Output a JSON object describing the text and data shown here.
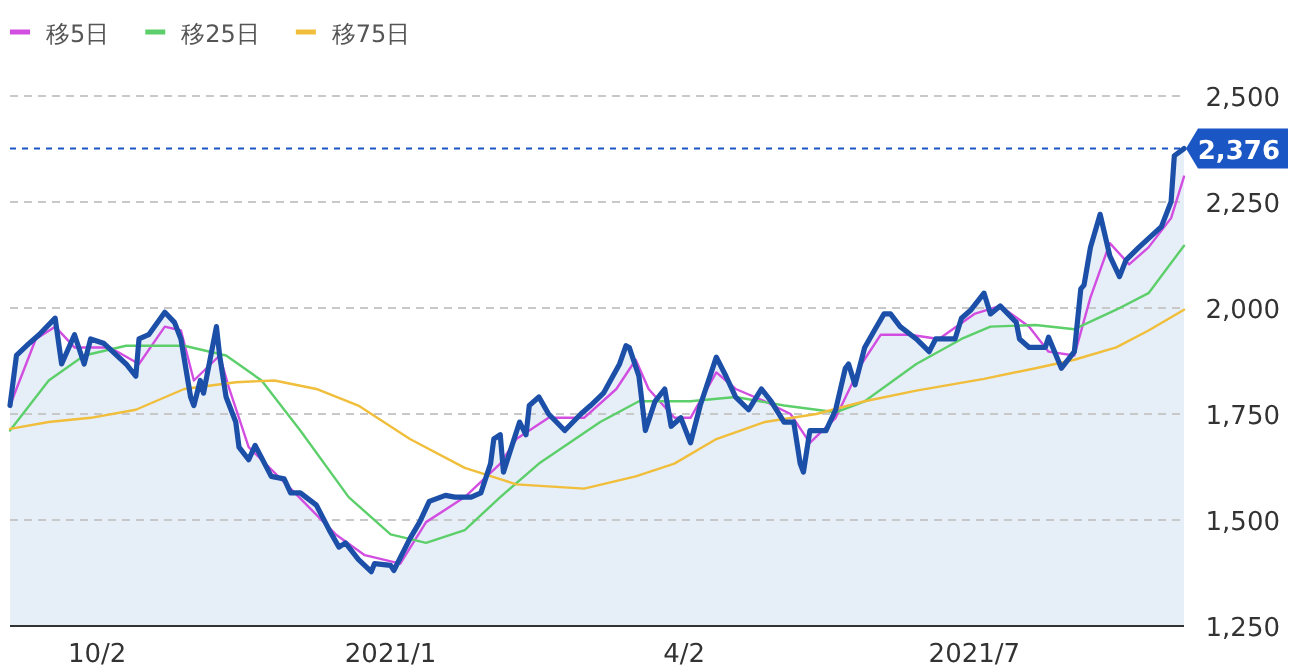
{
  "chart_data": {
    "type": "line",
    "legend": "top left",
    "grid": "y",
    "marker": "none",
    "xlim": [
      "2020-09-05",
      "2021-09-04"
    ],
    "ylim": [
      1250,
      2500
    ],
    "xticks": [
      {
        "value": "2020-10-02",
        "label": "10/2"
      },
      {
        "value": "2021-01-01",
        "label": "2021/1"
      },
      {
        "value": "2021-04-02",
        "label": "4/2"
      },
      {
        "value": "2021-07-01",
        "label": "2021/7"
      }
    ],
    "yticks": [
      {
        "value": 1250,
        "label": "1,250"
      },
      {
        "value": 1500,
        "label": "1,500"
      },
      {
        "value": 1750,
        "label": "1,750"
      },
      {
        "value": 2000,
        "label": "2,000"
      },
      {
        "value": 2250,
        "label": "2,250"
      },
      {
        "value": 2500,
        "label": "2,500"
      }
    ],
    "ref_lines": [
      {
        "axis": "y",
        "value": 2376,
        "label": "2,376",
        "color": "#1a56c4",
        "line_style": "dashed"
      }
    ],
    "series": [
      {
        "type": "area",
        "color": "#1b4fa8",
        "x": [
          "2020-09-05",
          "2020-09-07",
          "2020-09-11",
          "2020-09-14",
          "2020-09-19",
          "2020-09-21",
          "2020-09-25",
          "2020-09-28",
          "2020-09-30",
          "2020-10-04",
          "2020-10-11",
          "2020-10-14",
          "2020-10-15",
          "2020-10-18",
          "2020-10-23",
          "2020-10-26",
          "2020-10-28",
          "2020-10-31",
          "2020-11-01",
          "2020-11-03",
          "2020-11-04",
          "2020-11-08",
          "2020-11-09",
          "2020-11-11",
          "2020-11-14",
          "2020-11-15",
          "2020-11-18",
          "2020-11-20",
          "2020-11-25",
          "2020-11-29",
          "2020-12-01",
          "2020-12-04",
          "2020-12-09",
          "2020-12-13",
          "2020-12-16",
          "2020-12-18",
          "2020-12-22",
          "2020-12-26",
          "2020-12-27",
          "2021-01-01",
          "2021-01-02",
          "2021-01-07",
          "2021-01-10",
          "2021-01-13",
          "2021-01-18",
          "2021-01-21",
          "2021-01-26",
          "2021-01-29",
          "2021-02-01",
          "2021-02-02",
          "2021-02-04",
          "2021-02-05",
          "2021-02-10",
          "2021-02-12",
          "2021-02-13",
          "2021-02-16",
          "2021-02-19",
          "2021-02-24",
          "2021-03-01",
          "2021-03-04",
          "2021-03-08",
          "2021-03-13",
          "2021-03-15",
          "2021-03-16",
          "2021-03-19",
          "2021-03-21",
          "2021-03-24",
          "2021-03-27",
          "2021-03-29",
          "2021-04-01",
          "2021-04-04",
          "2021-04-07",
          "2021-04-12",
          "2021-04-15",
          "2021-04-18",
          "2021-04-22",
          "2021-04-26",
          "2021-04-29",
          "2021-05-03",
          "2021-05-06",
          "2021-05-08",
          "2021-05-09",
          "2021-05-11",
          "2021-05-16",
          "2021-05-19",
          "2021-05-22",
          "2021-05-23",
          "2021-05-25",
          "2021-05-28",
          "2021-05-31",
          "2021-06-03",
          "2021-06-05",
          "2021-06-08",
          "2021-06-13",
          "2021-06-17",
          "2021-06-19",
          "2021-06-25",
          "2021-06-27",
          "2021-06-30",
          "2021-07-04",
          "2021-07-06",
          "2021-07-09",
          "2021-07-14",
          "2021-07-15",
          "2021-07-18",
          "2021-07-23",
          "2021-07-24",
          "2021-07-28",
          "2021-08-01",
          "2021-08-03",
          "2021-08-04",
          "2021-08-06",
          "2021-08-09",
          "2021-08-12",
          "2021-08-15",
          "2021-08-17",
          "2021-08-21",
          "2021-08-28",
          "2021-08-31",
          "2021-09-01",
          "2021-09-04"
        ],
        "values": [
          1770,
          1888,
          1917,
          1937,
          1976,
          1868,
          1937,
          1868,
          1927,
          1917,
          1868,
          1839,
          1927,
          1937,
          1990,
          1966,
          1927,
          1790,
          1770,
          1829,
          1799,
          1956,
          1888,
          1790,
          1731,
          1672,
          1642,
          1676,
          1603,
          1597,
          1564,
          1564,
          1535,
          1476,
          1436,
          1446,
          1407,
          1378,
          1397,
          1393,
          1381,
          1456,
          1495,
          1544,
          1558,
          1554,
          1554,
          1564,
          1633,
          1691,
          1701,
          1613,
          1731,
          1701,
          1770,
          1790,
          1750,
          1711,
          1750,
          1770,
          1799,
          1868,
          1911,
          1907,
          1839,
          1711,
          1780,
          1809,
          1721,
          1741,
          1682,
          1770,
          1884,
          1839,
          1790,
          1760,
          1809,
          1780,
          1731,
          1731,
          1633,
          1613,
          1711,
          1711,
          1760,
          1858,
          1868,
          1819,
          1907,
          1947,
          1986,
          1986,
          1956,
          1927,
          1897,
          1927,
          1927,
          1976,
          1996,
          2035,
          1986,
          2005,
          1966,
          1927,
          1907,
          1907,
          1931,
          1858,
          1897,
          2045,
          2054,
          2143,
          2221,
          2123,
          2074,
          2113,
          2143,
          2192,
          2251,
          2359,
          2376
        ]
      },
      {
        "name": "移5日",
        "color": "#d24ee0",
        "x": [
          "2020-09-05",
          "2020-09-13",
          "2020-09-19",
          "2020-09-25",
          "2020-10-06",
          "2020-10-15",
          "2020-10-23",
          "2020-10-28",
          "2020-11-01",
          "2020-11-09",
          "2020-11-12",
          "2020-11-18",
          "2020-12-01",
          "2020-12-15",
          "2020-12-24",
          "2021-01-04",
          "2021-01-12",
          "2021-01-24",
          "2021-02-04",
          "2021-02-09",
          "2021-02-19",
          "2021-03-02",
          "2021-03-12",
          "2021-03-18",
          "2021-03-22",
          "2021-03-30",
          "2021-04-04",
          "2021-04-12",
          "2021-04-18",
          "2021-04-27",
          "2021-05-05",
          "2021-05-11",
          "2021-05-19",
          "2021-05-27",
          "2021-06-02",
          "2021-06-11",
          "2021-06-20",
          "2021-07-01",
          "2021-07-09",
          "2021-07-18",
          "2021-07-24",
          "2021-08-01",
          "2021-08-06",
          "2021-08-12",
          "2021-08-18",
          "2021-08-24",
          "2021-08-31",
          "2021-09-04"
        ],
        "values": [
          1770,
          1927,
          1956,
          1907,
          1907,
          1868,
          1956,
          1947,
          1829,
          1888,
          1809,
          1672,
          1574,
          1466,
          1417,
          1397,
          1495,
          1554,
          1633,
          1691,
          1741,
          1741,
          1809,
          1878,
          1809,
          1741,
          1741,
          1848,
          1809,
          1780,
          1750,
          1682,
          1741,
          1868,
          1937,
          1937,
          1927,
          1986,
          2005,
          1956,
          1897,
          1888,
          2025,
          2153,
          2103,
          2143,
          2212,
          2310
        ]
      },
      {
        "name": "移25日",
        "color": "#5ccf6a",
        "x": [
          "2020-09-05",
          "2020-09-17",
          "2020-09-28",
          "2020-10-11",
          "2020-10-29",
          "2020-11-11",
          "2020-11-22",
          "2020-12-04",
          "2020-12-19",
          "2021-01-01",
          "2021-01-12",
          "2021-01-24",
          "2021-02-04",
          "2021-02-16",
          "2021-03-07",
          "2021-03-19",
          "2021-04-04",
          "2021-04-18",
          "2021-05-03",
          "2021-05-19",
          "2021-05-28",
          "2021-06-13",
          "2021-06-27",
          "2021-07-06",
          "2021-07-20",
          "2021-08-01",
          "2021-08-14",
          "2021-08-24",
          "2021-09-04"
        ],
        "values": [
          1711,
          1829,
          1888,
          1911,
          1911,
          1888,
          1829,
          1711,
          1554,
          1466,
          1446,
          1476,
          1554,
          1633,
          1731,
          1780,
          1780,
          1790,
          1770,
          1754,
          1780,
          1868,
          1927,
          1956,
          1960,
          1950,
          1996,
          2035,
          2147
        ]
      },
      {
        "name": "移75日",
        "color": "#f0be3a",
        "x": [
          "2020-09-05",
          "2020-09-17",
          "2020-09-30",
          "2020-10-14",
          "2020-10-29",
          "2020-11-14",
          "2020-11-26",
          "2020-12-09",
          "2020-12-22",
          "2021-01-07",
          "2021-01-24",
          "2021-02-09",
          "2021-03-02",
          "2021-03-18",
          "2021-03-30",
          "2021-04-12",
          "2021-04-27",
          "2021-05-13",
          "2021-05-28",
          "2021-06-13",
          "2021-07-04",
          "2021-07-20",
          "2021-08-01",
          "2021-08-14",
          "2021-08-24",
          "2021-09-04"
        ],
        "values": [
          1715,
          1731,
          1741,
          1760,
          1809,
          1825,
          1829,
          1809,
          1770,
          1691,
          1623,
          1584,
          1574,
          1603,
          1633,
          1691,
          1731,
          1750,
          1780,
          1805,
          1833,
          1858,
          1878,
          1907,
          1947,
          1996
        ]
      }
    ]
  }
}
